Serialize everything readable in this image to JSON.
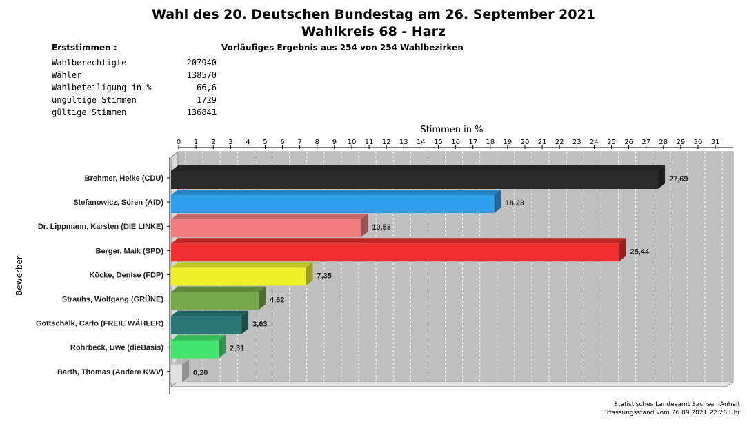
{
  "title_line1": "Wahl des 20. Deutschen Bundestag am 26. September 2021",
  "title_line2": "Wahlkreis 68 - Harz",
  "first_votes_heading": "Erststimmen  :",
  "subtitle": "Vorläufiges Ergebnis aus 254 von 254 Wahlbezirken",
  "stats": [
    {
      "label": "Wahlberechtigte",
      "value": "207940"
    },
    {
      "label": "Wähler",
      "value": "138570"
    },
    {
      "label": "Wahlbeteiligung in %",
      "value": "66,6"
    },
    {
      "label": "ungültige Stimmen",
      "value": "1729"
    },
    {
      "label": "gültige Stimmen",
      "value": "136841"
    }
  ],
  "footer": {
    "line1": "Statistisches Landesamt Sachsen-Anhalt",
    "line2": "Erfassungsstand vom 26.09.2021 22:28 Uhr"
  },
  "chart_data": {
    "type": "bar",
    "orientation": "horizontal",
    "xlabel": "Stimmen in %",
    "ylabel": "Bewerber",
    "xlim": [
      0,
      31
    ],
    "x_ticks": [
      "0",
      "1",
      "2",
      "3",
      "4",
      "5",
      "6",
      "7",
      "8",
      "9",
      "10",
      "11",
      "12",
      "13",
      "14",
      "15",
      "16",
      "17",
      "18",
      "19",
      "20",
      "21",
      "22",
      "23",
      "24",
      "25",
      "26",
      "27",
      "28",
      "29",
      "30",
      "31"
    ],
    "grid": true,
    "categories": [
      "Brehmer, Heike (CDU)",
      "Stefanowicz, Sören (AfD)",
      "Dr. Lippmann, Karsten (DIE LINKE)",
      "Berger, Maik (SPD)",
      "Köcke, Denise (FDP)",
      "Strauhs, Wolfgang (GRÜNE)",
      "Gottschalk, Carlo (FREIE WÄHLER)",
      "Rohrbeck, Uwe (dieBasis)",
      "Barth, Thomas (Andere KWV)"
    ],
    "values": [
      27.69,
      18.23,
      10.53,
      25.44,
      7.35,
      4.62,
      3.63,
      2.31,
      0.2
    ],
    "value_labels": [
      "27,69",
      "18,23",
      "10,53",
      "25,44",
      "7,35",
      "4,62",
      "3,63",
      "2,31",
      "0,20"
    ],
    "colors": [
      "#2b2b2b",
      "#2f9fec",
      "#f07d7d",
      "#ee2e2e",
      "#efef2b",
      "#77a84a",
      "#2a7777",
      "#44e56e",
      "#e2e2e2"
    ]
  }
}
